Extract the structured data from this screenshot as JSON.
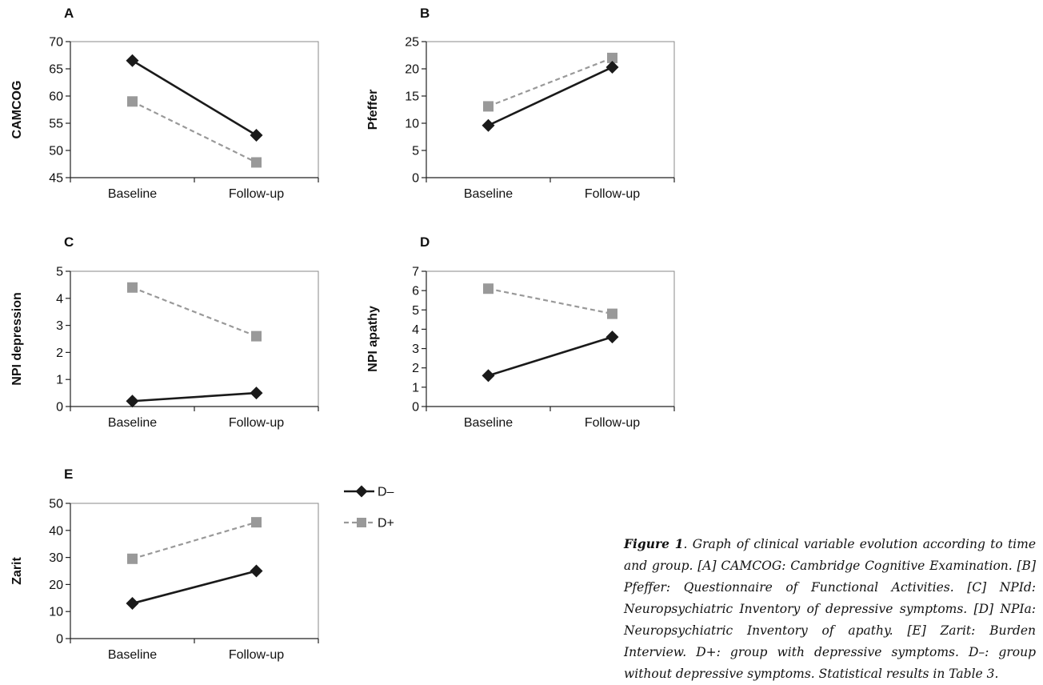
{
  "chart_data": [
    {
      "type": "line",
      "panel_label": "A",
      "ylabel": "CAMCOG",
      "categories": [
        "Baseline",
        "Follow-up"
      ],
      "ylim": [
        45,
        70
      ],
      "yticks": [
        "45",
        "50",
        "55",
        "60",
        "65",
        "70"
      ],
      "series": [
        {
          "name": "D–",
          "values": [
            66.5,
            52.8
          ]
        },
        {
          "name": "D+",
          "values": [
            59.0,
            47.8
          ]
        }
      ]
    },
    {
      "type": "line",
      "panel_label": "B",
      "ylabel": "Pfeffer",
      "categories": [
        "Baseline",
        "Follow-up"
      ],
      "ylim": [
        0,
        25
      ],
      "yticks": [
        "0",
        "5",
        "10",
        "15",
        "20",
        "25"
      ],
      "series": [
        {
          "name": "D–",
          "values": [
            9.6,
            20.3
          ]
        },
        {
          "name": "D+",
          "values": [
            13.1,
            22.0
          ]
        }
      ]
    },
    {
      "type": "line",
      "panel_label": "C",
      "ylabel": "NPI depression",
      "categories": [
        "Baseline",
        "Follow-up"
      ],
      "ylim": [
        0,
        5
      ],
      "yticks": [
        "0",
        "1",
        "2",
        "3",
        "4",
        "5"
      ],
      "series": [
        {
          "name": "D–",
          "values": [
            0.2,
            0.5
          ]
        },
        {
          "name": "D+",
          "values": [
            4.4,
            2.6
          ]
        }
      ]
    },
    {
      "type": "line",
      "panel_label": "D",
      "ylabel": "NPI apathy",
      "categories": [
        "Baseline",
        "Follow-up"
      ],
      "ylim": [
        0,
        7
      ],
      "yticks": [
        "0",
        "1",
        "2",
        "3",
        "4",
        "5",
        "6",
        "7"
      ],
      "series": [
        {
          "name": "D–",
          "values": [
            1.6,
            3.6
          ]
        },
        {
          "name": "D+",
          "values": [
            6.1,
            4.8
          ]
        }
      ]
    },
    {
      "type": "line",
      "panel_label": "E",
      "ylabel": "Zarit",
      "categories": [
        "Baseline",
        "Follow-up"
      ],
      "ylim": [
        0,
        50
      ],
      "yticks": [
        "0",
        "10",
        "20",
        "30",
        "40",
        "50"
      ],
      "series": [
        {
          "name": "D–",
          "values": [
            13,
            25
          ]
        },
        {
          "name": "D+",
          "values": [
            29.5,
            43
          ]
        }
      ]
    }
  ],
  "legend": {
    "items": [
      {
        "label": "D–",
        "color": "#1a1a1a",
        "marker": "diamond",
        "dash": "solid"
      },
      {
        "label": "D+",
        "color": "#999999",
        "marker": "square",
        "dash": "dashed"
      }
    ]
  },
  "caption": {
    "lead": "Figure 1",
    "text": ". Graph of clinical variable evolution according to time and group. [A] CAMCOG: Cambridge Cognitive Examination. [B] Pfeffer: Questionnaire of Functional Activities. [C] NPId: Neuropsychiatric Inventory of depressive symptoms. [D] NPIa: Neuropsychiatric Inventory of apathy. [E] Zarit: Burden Interview. D+: group with depressive symptoms. D–: group without depressive symptoms. Statistical results in Table 3."
  }
}
